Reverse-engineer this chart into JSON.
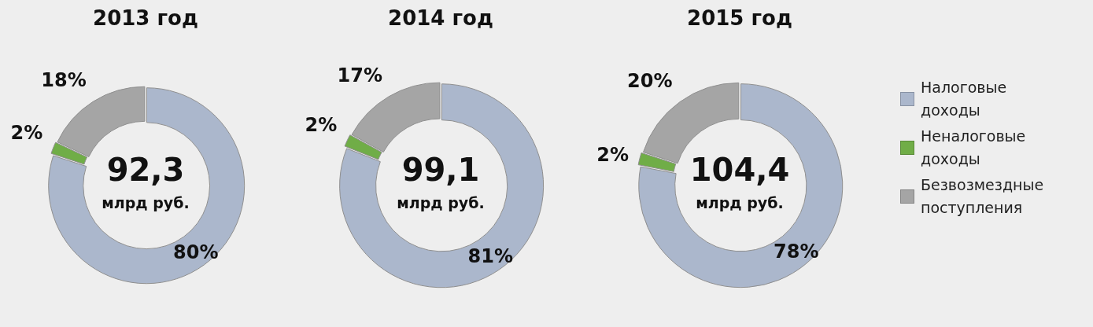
{
  "chart_data": [
    {
      "type": "donut",
      "title": "2013 год",
      "categories": [
        null,
        null,
        null
      ],
      "values": [
        80,
        2,
        18
      ],
      "colors": [
        "#abb7cc",
        "#70ad47",
        "#a5a5a5"
      ],
      "value_labels": [
        "80%",
        "2%",
        "18%"
      ],
      "annotations": [
        "92,3",
        "млрд руб."
      ]
    },
    {
      "type": "donut",
      "title": "2014 год",
      "categories": [
        null,
        null,
        null
      ],
      "values": [
        81,
        2,
        17
      ],
      "colors": [
        "#abb7cc",
        "#70ad47",
        "#a5a5a5"
      ],
      "value_labels": [
        "81%",
        "2%",
        "17%"
      ],
      "annotations": [
        "99,1",
        "млрд руб."
      ]
    },
    {
      "type": "donut",
      "title": "2015 год",
      "categories": [
        "Налоговые доходы",
        "Неналоговые доходы",
        "Безвозмездные поступления"
      ],
      "values": [
        78,
        2,
        20
      ],
      "colors": [
        "#abb7cc",
        "#70ad47",
        "#a5a5a5"
      ],
      "value_labels": [
        "78%",
        "2%",
        "20%"
      ],
      "annotations": [
        "104,4",
        "млрд руб."
      ],
      "legend": "right"
    }
  ]
}
